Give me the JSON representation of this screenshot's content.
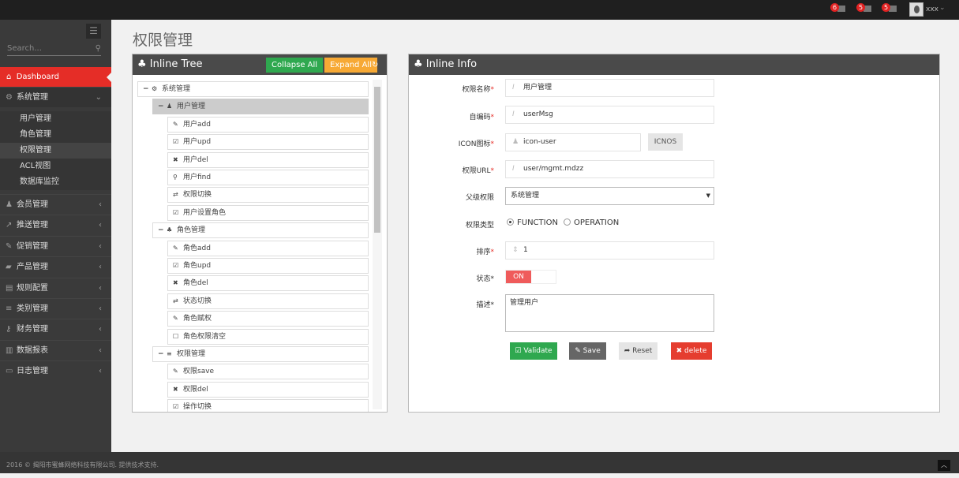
{
  "topbar": {
    "notifications": [
      {
        "count": "6",
        "icon": "warning-icon"
      },
      {
        "count": "5",
        "icon": "envelope-icon"
      },
      {
        "count": "5",
        "icon": "tasks-icon"
      }
    ],
    "username": "xxx"
  },
  "sidebar": {
    "search_placeholder": "Search...",
    "dashboard": "Dashboard",
    "system": {
      "label": "系统管理",
      "items": [
        "用户管理",
        "角色管理",
        "权限管理",
        "ACL视图",
        "数据库监控"
      ],
      "active_index": 2
    },
    "menus": [
      {
        "label": "会员管理",
        "icon": "user-icon"
      },
      {
        "label": "推送管理",
        "icon": "share-icon"
      },
      {
        "label": "促销管理",
        "icon": "pencil-icon"
      },
      {
        "label": "产品管理",
        "icon": "folder-icon"
      },
      {
        "label": "规则配置",
        "icon": "list-alt-icon"
      },
      {
        "label": "类别管理",
        "icon": "list-icon"
      },
      {
        "label": "财务管理",
        "icon": "key-icon"
      },
      {
        "label": "数据报表",
        "icon": "bar-chart-icon"
      },
      {
        "label": "日志管理",
        "icon": "credit-card-icon"
      }
    ]
  },
  "page_title": "权限管理",
  "tree_panel": {
    "title": "Inline Tree",
    "collapse_all": "Collapse All",
    "expand_all": "Expand All",
    "nodes": [
      {
        "level": 0,
        "label": "系统管理",
        "icon": "cogs-icon",
        "glyph": "⚙",
        "toggle": "−"
      },
      {
        "level": 1,
        "label": "用户管理",
        "icon": "user-icon",
        "glyph": "♟",
        "toggle": "−",
        "selected": true
      },
      {
        "level": 2,
        "label": "用户add",
        "icon": "pencil-icon",
        "glyph": "✎"
      },
      {
        "level": 2,
        "label": "用户upd",
        "icon": "edit-icon",
        "glyph": "☑"
      },
      {
        "level": 2,
        "label": "用户del",
        "icon": "times-icon",
        "glyph": "✖"
      },
      {
        "level": 2,
        "label": "用户find",
        "icon": "search-icon",
        "glyph": "⚲"
      },
      {
        "level": 2,
        "label": "权限切换",
        "icon": "retweet-icon",
        "glyph": "⇄"
      },
      {
        "level": 2,
        "label": "用户设置角色",
        "icon": "check-square-icon",
        "glyph": "☑"
      },
      {
        "level": 1,
        "label": "角色管理",
        "icon": "sitemap-icon",
        "glyph": "♣",
        "toggle": "−"
      },
      {
        "level": 2,
        "label": "角色add",
        "icon": "pencil-icon",
        "glyph": "✎"
      },
      {
        "level": 2,
        "label": "角色upd",
        "icon": "edit-icon",
        "glyph": "☑"
      },
      {
        "level": 2,
        "label": "角色del",
        "icon": "times-icon",
        "glyph": "✖"
      },
      {
        "level": 2,
        "label": "状态切换",
        "icon": "retweet-icon",
        "glyph": "⇄"
      },
      {
        "level": 2,
        "label": "角色赋权",
        "icon": "pencil-icon",
        "glyph": "✎"
      },
      {
        "level": 2,
        "label": "角色权限清空",
        "icon": "square-icon",
        "glyph": "☐"
      },
      {
        "level": 1,
        "label": "权限管理",
        "icon": "list-icon",
        "glyph": "≡",
        "toggle": "−"
      },
      {
        "level": 2,
        "label": "权限save",
        "icon": "pencil-icon",
        "glyph": "✎"
      },
      {
        "level": 2,
        "label": "权限del",
        "icon": "times-icon",
        "glyph": "✖"
      },
      {
        "level": 2,
        "label": "操作切换",
        "icon": "edit-icon",
        "glyph": "☑"
      }
    ]
  },
  "info_panel": {
    "title": "Inline Info",
    "fields": {
      "name": {
        "label": "权限名称",
        "value": "用户管理"
      },
      "code": {
        "label": "自编码",
        "value": "userMsg"
      },
      "icon": {
        "label": "ICON图标",
        "value": "icon-user",
        "button": "ICNOS"
      },
      "url": {
        "label": "权限URL",
        "value": "user/mgmt.mdzz"
      },
      "parent": {
        "label": "父级权限",
        "value": "系统管理"
      },
      "type": {
        "label": "权限类型",
        "options": [
          "FUNCTION",
          "OPERATION"
        ],
        "selected": "FUNCTION"
      },
      "order": {
        "label": "排序",
        "value": "1"
      },
      "status": {
        "label": "状态",
        "value": "ON"
      },
      "desc": {
        "label": "描述",
        "value": "管理用户"
      }
    },
    "buttons": {
      "validate": "Validate",
      "save": "Save",
      "reset": "Reset",
      "delete": "delete"
    }
  },
  "footer": "2016 © 揭阳市蜜蜂网络科技有限公司. 提供技术支持.",
  "colors": {
    "accent": "#e52d27",
    "success": "#2fa84f",
    "warning": "#f7a935",
    "dark": "#4a4a4a"
  }
}
